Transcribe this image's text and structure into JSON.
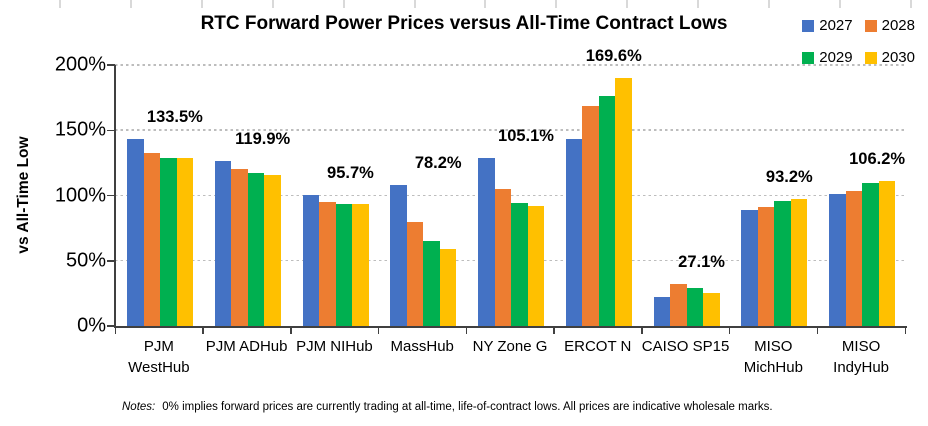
{
  "chart_data": {
    "type": "bar",
    "title": "RTC Forward Power Prices versus All-Time Contract Lows",
    "ylabel": "vs All-Time Low",
    "ylim": [
      0,
      200
    ],
    "y_ticks": [
      "0%",
      "50%",
      "100%",
      "150%",
      "200%"
    ],
    "grid": "horizontal dashed lines every 50%",
    "legend_position": "top-right 2x2",
    "categories": [
      "PJM WestHub",
      "PJM ADHub",
      "PJM NIHub",
      "MassHub",
      "NY Zone G",
      "ERCOT N",
      "CAISO SP15",
      "MISO MichHub",
      "MISO IndyHub"
    ],
    "category_label_lines": [
      [
        "PJM",
        "WestHub"
      ],
      [
        "PJM ADHub"
      ],
      [
        "PJM NIHub"
      ],
      [
        "MassHub"
      ],
      [
        "NY Zone G"
      ],
      [
        "ERCOT N"
      ],
      [
        "CAISO SP15"
      ],
      [
        "MISO",
        "MichHub"
      ],
      [
        "MISO",
        "IndyHub"
      ]
    ],
    "group_avg_labels": [
      "133.5%",
      "119.9%",
      "95.7%",
      "78.2%",
      "105.1%",
      "169.6%",
      "27.1%",
      "93.2%",
      "106.2%"
    ],
    "series": [
      {
        "name": "2027",
        "color": "#4472C4",
        "values": [
          143.5,
          126.5,
          100.5,
          108.0,
          129.0,
          143.5,
          22.0,
          89.0,
          101.0
        ]
      },
      {
        "name": "2028",
        "color": "#ED7D31",
        "values": [
          132.5,
          120.0,
          95.0,
          80.0,
          105.0,
          168.5,
          32.0,
          91.0,
          103.5
        ]
      },
      {
        "name": "2029",
        "color": "#00B050",
        "values": [
          129.0,
          117.0,
          93.7,
          65.5,
          94.5,
          176.5,
          29.0,
          95.5,
          109.5
        ]
      },
      {
        "name": "2030",
        "color": "#FFC000",
        "values": [
          128.5,
          116.0,
          93.6,
          59.3,
          92.0,
          190.0,
          25.4,
          97.3,
          110.8
        ]
      }
    ]
  },
  "notes": {
    "label": "Notes:",
    "text": "0% implies forward prices are currently trading at all-time, life-of-contract lows. All prices are indicative wholesale marks."
  }
}
